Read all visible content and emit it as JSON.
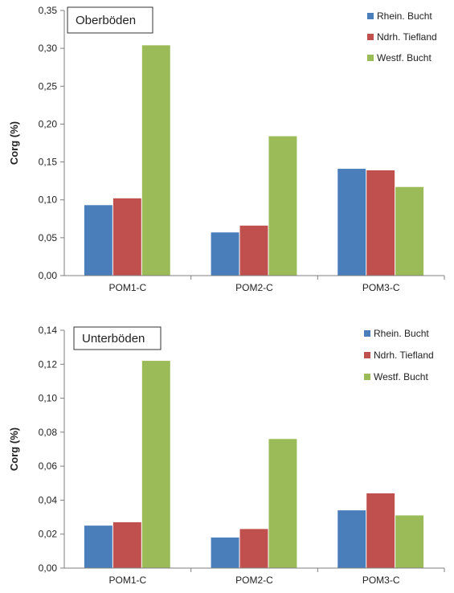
{
  "chart_data": [
    {
      "type": "bar",
      "title": "Oberböden",
      "ylabel": "Corg (%)",
      "ylim": [
        0,
        0.35
      ],
      "ytick_values": [
        0,
        0.05,
        0.1,
        0.15,
        0.2,
        0.25,
        0.3,
        0.35
      ],
      "ytick_labels": [
        "0,00",
        "0,05",
        "0,10",
        "0,15",
        "0,20",
        "0,25",
        "0,30",
        "0,35"
      ],
      "categories": [
        "POM1-C",
        "POM2-C",
        "POM3-C"
      ],
      "series": [
        {
          "name": "Rhein. Bucht",
          "color": "#4a7ebb",
          "values": [
            0.093,
            0.057,
            0.141
          ]
        },
        {
          "name": "Ndrh. Tiefland",
          "color": "#c0504d",
          "values": [
            0.102,
            0.066,
            0.139
          ]
        },
        {
          "name": "Westf. Bucht",
          "color": "#9bbb59",
          "values": [
            0.304,
            0.184,
            0.117
          ]
        }
      ],
      "legend": "top-right"
    },
    {
      "type": "bar",
      "title": "Unterböden",
      "ylabel": "Corg (%)",
      "ylim": [
        0,
        0.14
      ],
      "ytick_values": [
        0,
        0.02,
        0.04,
        0.06,
        0.08,
        0.1,
        0.12,
        0.14
      ],
      "ytick_labels": [
        "0,00",
        "0,02",
        "0,04",
        "0,06",
        "0,08",
        "0,10",
        "0,12",
        "0,14"
      ],
      "categories": [
        "POM1-C",
        "POM2-C",
        "POM3-C"
      ],
      "series": [
        {
          "name": "Rhein. Bucht",
          "color": "#4a7ebb",
          "values": [
            0.025,
            0.018,
            0.034
          ]
        },
        {
          "name": "Ndrh. Tiefland",
          "color": "#c0504d",
          "values": [
            0.027,
            0.023,
            0.044
          ]
        },
        {
          "name": "Westf. Bucht",
          "color": "#9bbb59",
          "values": [
            0.122,
            0.076,
            0.031
          ]
        }
      ],
      "legend": "top-right"
    }
  ]
}
